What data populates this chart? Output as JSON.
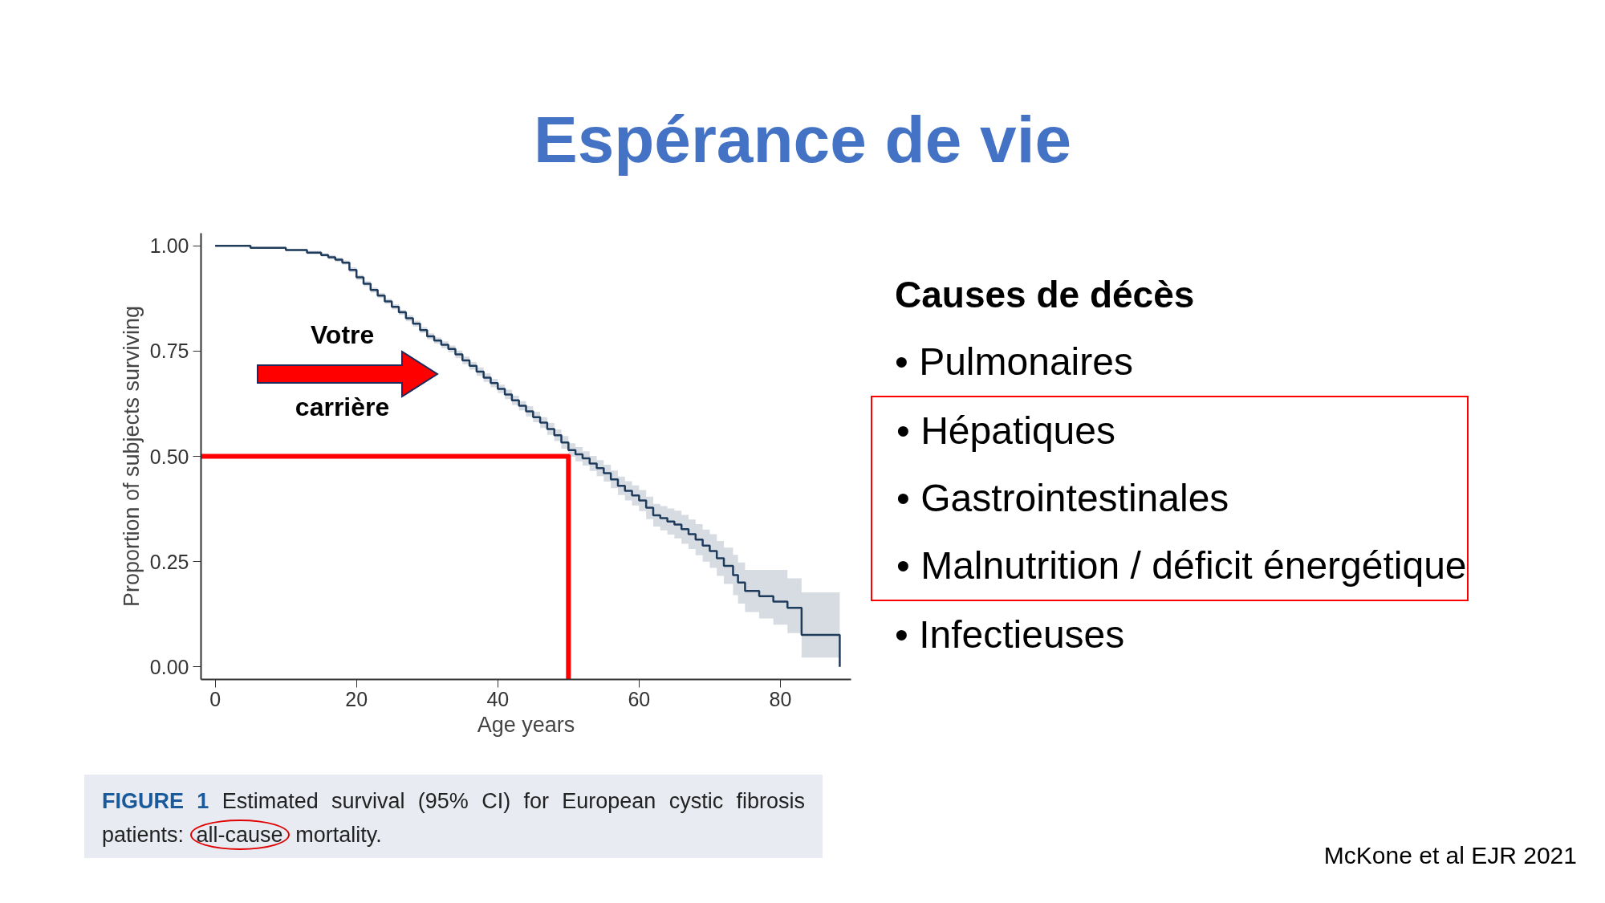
{
  "chart_data": [
    {
      "type": "step",
      "title": "Espérance de vie",
      "xlabel": "Age years",
      "ylabel": "Proportion of subjects surviving",
      "xlim": [
        -2,
        90
      ],
      "xticks": [
        0,
        20,
        40,
        60,
        80
      ],
      "ylim": [
        -0.03,
        1.03
      ],
      "yticks": [
        {
          "value": 0,
          "label": "0.00"
        },
        {
          "value": 0.25,
          "label": "0.25"
        },
        {
          "value": 0.5,
          "label": "0.50"
        },
        {
          "value": 0.75,
          "label": "0.75"
        },
        {
          "value": 1,
          "label": "1.00"
        }
      ],
      "series": [
        {
          "type": "step",
          "color": "#1f3b5c",
          "x": [
            0,
            5,
            10,
            13,
            15,
            16,
            17,
            18,
            19,
            20,
            21,
            22,
            23,
            24,
            25,
            26,
            27,
            28,
            29,
            30,
            31,
            32,
            33,
            34,
            35,
            36,
            37,
            38,
            39,
            40,
            41,
            42,
            43,
            44,
            45,
            46,
            47,
            48,
            49,
            50,
            51,
            52,
            53,
            54,
            55,
            56,
            57,
            58,
            59,
            60,
            61,
            62,
            63,
            64,
            65,
            66,
            67,
            68,
            69,
            70,
            71,
            72,
            73.3,
            74,
            75,
            77,
            79,
            81,
            83,
            88.4
          ],
          "values": [
            1.0,
            0.995,
            0.99,
            0.984,
            0.978,
            0.973,
            0.967,
            0.96,
            0.943,
            0.925,
            0.91,
            0.895,
            0.882,
            0.868,
            0.855,
            0.842,
            0.828,
            0.815,
            0.8,
            0.785,
            0.775,
            0.765,
            0.755,
            0.742,
            0.728,
            0.715,
            0.701,
            0.687,
            0.674,
            0.66,
            0.647,
            0.633,
            0.62,
            0.607,
            0.593,
            0.58,
            0.565,
            0.55,
            0.533,
            0.515,
            0.505,
            0.495,
            0.483,
            0.472,
            0.46,
            0.445,
            0.43,
            0.418,
            0.407,
            0.395,
            0.378,
            0.36,
            0.353,
            0.345,
            0.338,
            0.327,
            0.315,
            0.302,
            0.288,
            0.275,
            0.258,
            0.24,
            0.218,
            0.2,
            0.18,
            0.168,
            0.155,
            0.14,
            0.076,
            0.0
          ],
          "lower": [
            1.0,
            0.993,
            0.987,
            0.98,
            0.974,
            0.968,
            0.962,
            0.955,
            0.937,
            0.919,
            0.904,
            0.889,
            0.876,
            0.862,
            0.849,
            0.836,
            0.821,
            0.808,
            0.793,
            0.778,
            0.768,
            0.757,
            0.747,
            0.733,
            0.719,
            0.706,
            0.691,
            0.677,
            0.664,
            0.65,
            0.636,
            0.622,
            0.609,
            0.595,
            0.581,
            0.567,
            0.551,
            0.536,
            0.518,
            0.499,
            0.488,
            0.478,
            0.465,
            0.453,
            0.44,
            0.424,
            0.408,
            0.395,
            0.383,
            0.37,
            0.351,
            0.333,
            0.324,
            0.314,
            0.305,
            0.292,
            0.28,
            0.265,
            0.25,
            0.235,
            0.216,
            0.197,
            0.17,
            0.15,
            0.13,
            0.115,
            0.1,
            0.08,
            0.022,
            0.022
          ],
          "upper": [
            1.0,
            0.997,
            0.993,
            0.988,
            0.982,
            0.978,
            0.972,
            0.965,
            0.949,
            0.931,
            0.916,
            0.901,
            0.888,
            0.874,
            0.861,
            0.848,
            0.835,
            0.822,
            0.807,
            0.792,
            0.782,
            0.773,
            0.763,
            0.751,
            0.737,
            0.724,
            0.711,
            0.697,
            0.684,
            0.67,
            0.658,
            0.644,
            0.631,
            0.619,
            0.606,
            0.593,
            0.579,
            0.564,
            0.548,
            0.531,
            0.522,
            0.512,
            0.501,
            0.491,
            0.48,
            0.466,
            0.452,
            0.441,
            0.431,
            0.42,
            0.404,
            0.387,
            0.382,
            0.376,
            0.371,
            0.361,
            0.35,
            0.339,
            0.326,
            0.315,
            0.299,
            0.283,
            0.266,
            0.248,
            0.23,
            0.23,
            0.23,
            0.21,
            0.177,
            0.177
          ]
        },
        {
          "type": "line",
          "color": "#ff0000",
          "x": [
            -2,
            50,
            50
          ],
          "values": [
            0.5,
            0.5,
            -0.03
          ]
        }
      ],
      "annotations": [
        "Votre",
        "carrière",
        "FIGURE 1",
        "Estimated survival (95% CI) for European cystic fibrosis patients:",
        "all-cause",
        "mortality.",
        "McKone et al EJR 2021"
      ]
    },
    {
      "type": "other",
      "title": "Causes de décès",
      "annotations": [
        "• Pulmonaires",
        "• Hépatiques",
        "• Gastrointestinales",
        "• Malnutrition / déficit énergétique",
        "• Infectieuses"
      ]
    }
  ]
}
